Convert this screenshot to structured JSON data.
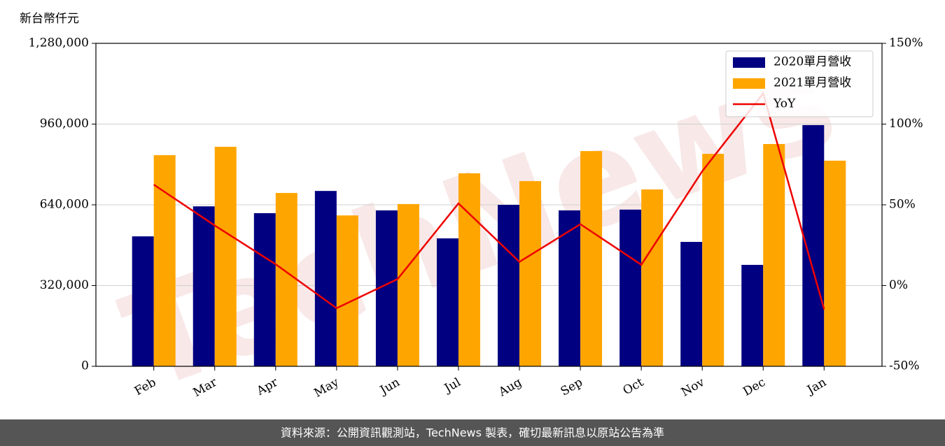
{
  "chart_data": {
    "type": "bar_line",
    "y_label": "新台幣仟元",
    "watermark": "TechNews",
    "footer": "資料來源：公開資訊觀測站，TechNews 製表，確切最新訊息以原站公告為準",
    "categories": [
      "Feb",
      "Mar",
      "Apr",
      "May",
      "Jun",
      "Jul",
      "Aug",
      "Sep",
      "Oct",
      "Nov",
      "Dec",
      "Jan"
    ],
    "series": [
      {
        "name": "2020單月營收",
        "type": "bar",
        "color": "#000080",
        "values": [
          515000,
          634000,
          607000,
          695000,
          618000,
          507000,
          640000,
          618000,
          621000,
          493000,
          402000,
          956000
        ]
      },
      {
        "name": "2021單月營收",
        "type": "bar",
        "color": "#ffa500",
        "values": [
          837000,
          870000,
          687000,
          598000,
          643000,
          765000,
          734000,
          853000,
          701000,
          842000,
          881000,
          815000
        ]
      },
      {
        "name": "YoY",
        "type": "line",
        "axis": "y2",
        "color": "#ee0000",
        "values": [
          62.5,
          37.2,
          13.2,
          -14,
          4,
          50.9,
          14.7,
          38,
          12.9,
          70.8,
          119,
          -14.7
        ]
      }
    ],
    "ylim": [
      0,
      1280000
    ],
    "yticks": [
      0,
      {
        "value": 320000,
        "label": "320,000"
      },
      {
        "value": 640000,
        "label": "640,000"
      },
      {
        "value": 960000,
        "label": "960,000"
      },
      {
        "value": 1280000,
        "label": "1,280,000"
      }
    ],
    "y2lim": [
      -50,
      150
    ],
    "y2ticks": [
      {
        "value": -50,
        "label": "-50%"
      },
      {
        "value": 0,
        "label": "0%"
      },
      {
        "value": 50,
        "label": "50%"
      },
      {
        "value": 100,
        "label": "100%"
      },
      {
        "value": 150,
        "label": "150%"
      }
    ],
    "grid": true,
    "legend": "upper right"
  }
}
